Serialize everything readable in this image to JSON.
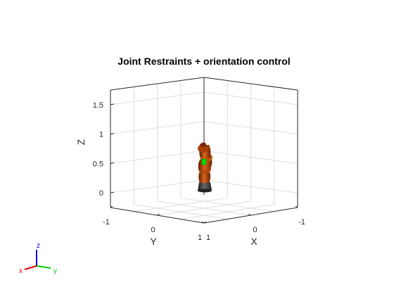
{
  "figure": {
    "title": "Joint Restraints + orientation control"
  },
  "chart_data": {
    "type": "3d-scene",
    "title": "Joint Restraints + orientation control",
    "axes": {
      "x": {
        "label": "X",
        "ticks": [
          "1",
          "0",
          "-1"
        ]
      },
      "y": {
        "label": "Y",
        "ticks": [
          "-1",
          "0",
          "1"
        ]
      },
      "z": {
        "label": "Z",
        "ticks": [
          "0",
          "0.5",
          "1",
          "1.5"
        ]
      }
    },
    "zlim": [
      -0.25,
      1.75
    ],
    "grid": true,
    "box": "half",
    "objects": [
      {
        "name": "robot-arm",
        "color": "#b84a0f"
      },
      {
        "name": "end-effector-marker",
        "color": "#00e000"
      },
      {
        "name": "robot-base",
        "color": "#333333"
      }
    ],
    "orientation_triad": {
      "labels": [
        "x",
        "y",
        "z"
      ],
      "colors": [
        "#e00000",
        "#00cc00",
        "#0000e0"
      ]
    }
  }
}
